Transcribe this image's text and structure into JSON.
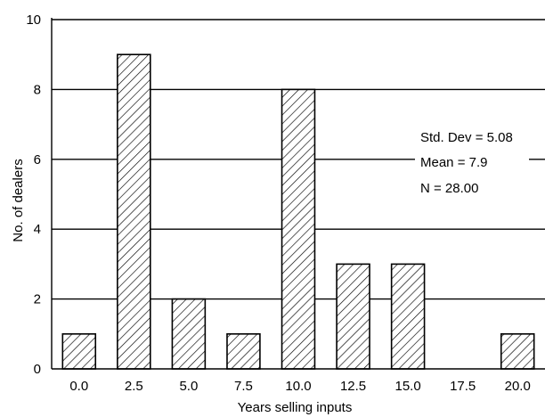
{
  "chart_data": {
    "type": "bar",
    "title": "",
    "xlabel": "Years selling inputs",
    "ylabel": "No. of dealers",
    "categories": [
      "0.0",
      "2.5",
      "5.0",
      "7.5",
      "10.0",
      "12.5",
      "15.0",
      "17.5",
      "20.0"
    ],
    "values": [
      1,
      9,
      2,
      1,
      8,
      3,
      3,
      0,
      1
    ],
    "yticks": [
      "0",
      "2",
      "4",
      "6",
      "8",
      "10"
    ],
    "ylim": [
      0,
      10
    ],
    "grid": true,
    "bar_fill": "diagonal hatch",
    "annotations": [
      "Std. Dev = 5.08",
      "Mean = 7.9",
      "N = 28.00"
    ],
    "colors": {
      "bar_stroke": "#000000",
      "background": "#ffffff"
    }
  }
}
